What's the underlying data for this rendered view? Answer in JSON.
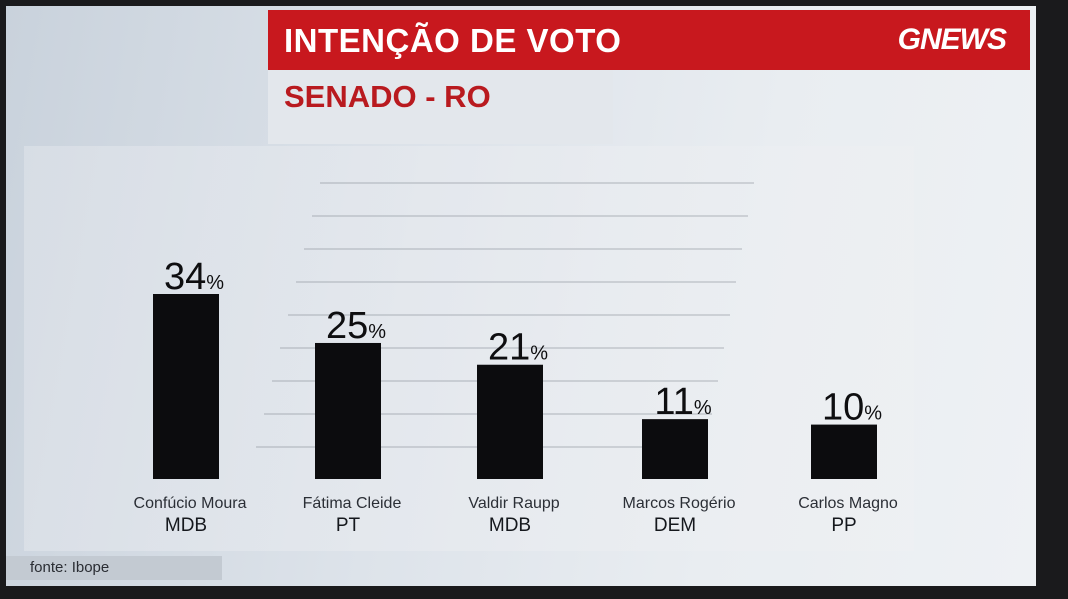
{
  "header": {
    "title": "INTENÇÃO DE VOTO",
    "subtitle": "SENADO - RO",
    "brand": "GNEWS"
  },
  "footer": {
    "source": "fonte: Ibope"
  },
  "colors": {
    "header_red": "#c8181e",
    "subtitle_red": "#b91a1f",
    "bar": "#0c0c0e"
  },
  "chart_data": {
    "type": "bar",
    "title": "INTENÇÃO DE VOTO",
    "subtitle": "SENADO - RO",
    "categories": [
      "Confúcio Moura",
      "Fátima Cleide",
      "Valdir Raupp",
      "Marcos Rogério",
      "Carlos Magno"
    ],
    "parties": [
      "MDB",
      "PT",
      "MDB",
      "DEM",
      "PP"
    ],
    "values": [
      34,
      25,
      21,
      11,
      10
    ],
    "unit": "%",
    "ylim": [
      0,
      34
    ],
    "grid": true,
    "legend": "none"
  }
}
